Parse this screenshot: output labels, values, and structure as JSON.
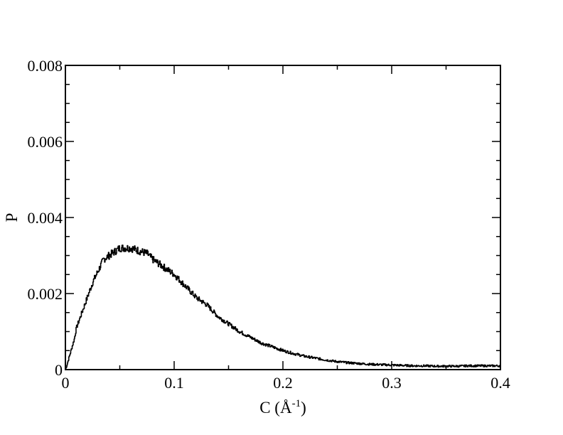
{
  "chart_data": {
    "type": "line",
    "title": "",
    "xlabel": {
      "main": "C (Å",
      "sup": "-1",
      "close": ")"
    },
    "ylabel": "P",
    "xlim": [
      0,
      0.4
    ],
    "ylim": [
      0,
      0.008
    ],
    "x_ticks": [
      0,
      0.1,
      0.2,
      0.3,
      0.4
    ],
    "x_tick_labels": [
      "0",
      "0.1",
      "0.2",
      "0.3",
      "0.4"
    ],
    "y_ticks": [
      0,
      0.002,
      0.004,
      0.006,
      0.008
    ],
    "y_tick_labels": [
      "0",
      "0.002",
      "0.004",
      "0.006",
      "0.008"
    ],
    "grid": false,
    "legend": "none",
    "line_color": "#000000",
    "series": [
      {
        "x": [
          0,
          0.002,
          0.005,
          0.008,
          0.01,
          0.015,
          0.02,
          0.025,
          0.03,
          0.035,
          0.04,
          0.045,
          0.05,
          0.055,
          0.06,
          0.065,
          0.07,
          0.075,
          0.08,
          0.085,
          0.09,
          0.095,
          0.1,
          0.11,
          0.12,
          0.13,
          0.14,
          0.15,
          0.16,
          0.17,
          0.18,
          0.19,
          0.2,
          0.21,
          0.22,
          0.23,
          0.24,
          0.25,
          0.26,
          0.27,
          0.28,
          0.29,
          0.3,
          0.31,
          0.32,
          0.33,
          0.34,
          0.35,
          0.36,
          0.37,
          0.38,
          0.39,
          0.4
        ],
        "values": [
          0,
          0.0002,
          0.0005,
          0.0008,
          0.0011,
          0.0015,
          0.0019,
          0.0023,
          0.0026,
          0.0029,
          0.003,
          0.0031,
          0.0032,
          0.0032,
          0.0032,
          0.00315,
          0.0031,
          0.00305,
          0.0029,
          0.0028,
          0.0027,
          0.0026,
          0.0025,
          0.0022,
          0.0019,
          0.0017,
          0.0014,
          0.0012,
          0.001,
          0.00085,
          0.0007,
          0.0006,
          0.0005,
          0.00042,
          0.00035,
          0.0003,
          0.00025,
          0.00021,
          0.00018,
          0.00016,
          0.00014,
          0.00013,
          0.00012,
          0.00011,
          0.0001,
          0.0001,
          9e-05,
          9e-05,
          9e-05,
          0.0001,
          0.0001,
          0.0001,
          0.0001
        ]
      }
    ]
  }
}
